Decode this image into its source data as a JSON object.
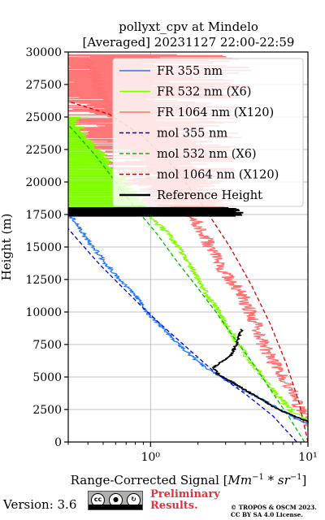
{
  "chart_data": {
    "type": "line",
    "title": [
      "pollyxt_cpv at Mindelo",
      "[Averaged] 20231127 22:00-22:59"
    ],
    "xlabel": "Range-Corrected Signal [Mm⁻¹ * sr⁻¹]",
    "ylabel": "Height (m)",
    "xscale": "log",
    "xlim": [
      0.3,
      10
    ],
    "ylim": [
      0,
      30000
    ],
    "grid": true,
    "legend_position": "upper-right",
    "x_ticks": [
      {
        "value": 1,
        "label": "10⁰"
      },
      {
        "value": 10,
        "label": "10¹"
      }
    ],
    "y_ticks": [
      0,
      2500,
      5000,
      7500,
      10000,
      12500,
      15000,
      17500,
      20000,
      22500,
      25000,
      27500,
      30000
    ],
    "y_tick_labels": [
      "0",
      "2500",
      "5000",
      "7500",
      "10000",
      "12500",
      "15000",
      "17500",
      "20000",
      "22500",
      "25000",
      "27500",
      "30000"
    ],
    "series": [
      {
        "name": "FR 355 nm",
        "style": "solid",
        "color": "#1f77ff",
        "noisy": true,
        "points": [
          [
            11,
            1300
          ],
          [
            9,
            1550
          ],
          [
            7.5,
            2200
          ],
          [
            5.2,
            3200
          ],
          [
            3.5,
            4300
          ],
          [
            2.2,
            5800
          ],
          [
            1.5,
            7500
          ],
          [
            1.2,
            8700
          ],
          [
            0.95,
            10000
          ],
          [
            0.8,
            11300
          ],
          [
            0.62,
            12600
          ],
          [
            0.5,
            14000
          ],
          [
            0.4,
            15500
          ],
          [
            0.33,
            17000
          ],
          [
            0.3,
            17500
          ]
        ]
      },
      {
        "name": "FR 532 nm (X6)",
        "style": "solid",
        "color": "#7fff00",
        "noisy": true,
        "points": [
          [
            11,
            1400
          ],
          [
            8,
            2300
          ],
          [
            6.3,
            3700
          ],
          [
            5.3,
            4900
          ],
          [
            4.4,
            6000
          ],
          [
            3.4,
            8000
          ],
          [
            2.7,
            10000
          ],
          [
            2.0,
            12500
          ],
          [
            1.6,
            14500
          ],
          [
            1.3,
            16000
          ],
          [
            0.95,
            17500
          ],
          [
            0.75,
            19000
          ],
          [
            0.55,
            21000
          ],
          [
            0.43,
            22600
          ],
          [
            0.35,
            24000
          ],
          [
            0.3,
            24800
          ]
        ]
      },
      {
        "name": "FR 1064 nm (X120)",
        "style": "solid",
        "color": "#ff7070",
        "noisy": true,
        "points": [
          [
            10.5,
            1200
          ],
          [
            9,
            2500
          ],
          [
            8,
            3800
          ],
          [
            7,
            5000
          ],
          [
            6,
            6200
          ],
          [
            5.2,
            7500
          ],
          [
            4.8,
            8700
          ],
          [
            4.3,
            10000
          ],
          [
            3.7,
            11500
          ],
          [
            3.0,
            13000
          ],
          [
            2.5,
            14500
          ],
          [
            2.2,
            16000
          ],
          [
            1.8,
            17500
          ],
          [
            1.4,
            19000
          ],
          [
            1.2,
            20500
          ],
          [
            0.9,
            22000
          ],
          [
            0.75,
            23500
          ],
          [
            0.6,
            25000
          ],
          [
            0.5,
            26500
          ],
          [
            0.45,
            28000
          ],
          [
            0.4,
            29500
          ]
        ]
      },
      {
        "name": "mol 355 nm",
        "style": "dashed",
        "color": "#0000ee",
        "noisy": false,
        "points": [
          [
            8.5,
            0
          ],
          [
            6.0,
            2000
          ],
          [
            4.0,
            3700
          ],
          [
            2.6,
            5300
          ],
          [
            1.8,
            7000
          ],
          [
            1.25,
            8700
          ],
          [
            0.9,
            10300
          ],
          [
            0.65,
            12000
          ],
          [
            0.48,
            13600
          ],
          [
            0.36,
            15300
          ],
          [
            0.3,
            16400
          ]
        ]
      },
      {
        "name": "mol 532 nm (X6)",
        "style": "dashed",
        "color": "#00bb00",
        "noisy": false,
        "points": [
          [
            9.5,
            0
          ],
          [
            7.5,
            2000
          ],
          [
            5.8,
            4000
          ],
          [
            4.5,
            6000
          ],
          [
            3.4,
            8000
          ],
          [
            2.6,
            10000
          ],
          [
            1.95,
            12000
          ],
          [
            1.45,
            14000
          ],
          [
            1.1,
            16000
          ],
          [
            0.8,
            18000
          ],
          [
            0.6,
            20000
          ],
          [
            0.45,
            22000
          ],
          [
            0.35,
            23500
          ],
          [
            0.3,
            24400
          ]
        ]
      },
      {
        "name": "mol 1064 nm (X120)",
        "style": "dashed",
        "color": "#dd0000",
        "noisy": false,
        "points": [
          [
            10.5,
            0
          ],
          [
            8.8,
            3000
          ],
          [
            7.3,
            6000
          ],
          [
            5.8,
            9000
          ],
          [
            4.4,
            12000
          ],
          [
            3.2,
            15000
          ],
          [
            2.2,
            18000
          ],
          [
            1.45,
            21000
          ],
          [
            0.9,
            23500
          ],
          [
            0.55,
            25200
          ],
          [
            0.3,
            26200
          ]
        ]
      },
      {
        "name": "Reference Height",
        "style": "thick",
        "color": "#000000",
        "noisy": true,
        "points": [
          [
            10.5,
            1500
          ],
          [
            8.5,
            1900
          ],
          [
            6.5,
            2500
          ],
          [
            5.0,
            3300
          ],
          [
            4.0,
            4000
          ],
          [
            3.2,
            4700
          ],
          [
            2.7,
            5200
          ],
          [
            2.5,
            5700
          ],
          [
            2.7,
            6000
          ],
          [
            3.2,
            6600
          ],
          [
            3.5,
            7500
          ],
          [
            3.8,
            8700
          ]
        ]
      }
    ],
    "reference_band": {
      "y_range": [
        17400,
        18000
      ],
      "x_range": [
        0.3,
        3.9
      ]
    },
    "legend_entries": [
      "FR 355 nm",
      "FR 532 nm (X6)",
      "FR 1064 nm (X120)",
      "mol 355 nm",
      "mol 532 nm (X6)",
      "mol 1064 nm (X120)",
      "Reference Height"
    ]
  },
  "footer": {
    "version": "Version: 3.6",
    "license_badge": [
      "cc",
      "by",
      "sa"
    ],
    "preliminary": [
      "Preliminary",
      "Results."
    ],
    "copyright": [
      "© TROPOS & OSCM 2023.",
      "CC BY SA 4.0 License."
    ]
  }
}
